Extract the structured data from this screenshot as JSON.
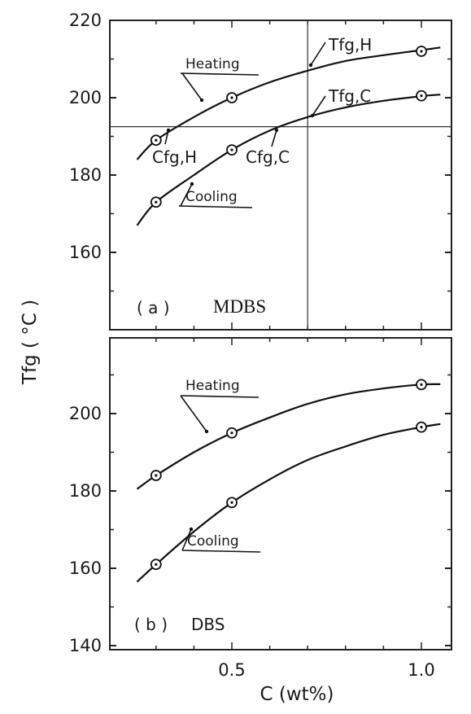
{
  "chart_data": [
    {
      "type": "line",
      "panel_label": "( a )",
      "panel_name": "MDBS",
      "ylim": [
        140,
        220
      ],
      "yticks": [
        160,
        180,
        200,
        220
      ],
      "xlim": [
        0.25,
        1.05
      ],
      "xticks": [
        0.5,
        1.0
      ],
      "series": [
        {
          "name": "Heating",
          "x": [
            0.3,
            0.5,
            1.0
          ],
          "values": [
            189,
            200,
            212
          ],
          "curve": {
            "x": [
              0.25,
              0.3,
              0.4,
              0.5,
              0.6,
              0.7,
              0.8,
              0.9,
              1.0,
              1.05
            ],
            "y": [
              184,
              189,
              195,
              200,
              204,
              207,
              209.5,
              211,
              212.3,
              213
            ]
          }
        },
        {
          "name": "Cooling",
          "x": [
            0.3,
            0.5,
            1.0
          ],
          "values": [
            173,
            186.5,
            200.5
          ],
          "curve": {
            "x": [
              0.25,
              0.3,
              0.4,
              0.5,
              0.6,
              0.7,
              0.8,
              0.9,
              1.0,
              1.05
            ],
            "y": [
              167,
              173,
              180,
              186.5,
              191.5,
              195,
              197.5,
              199.2,
              200.4,
              200.8
            ]
          }
        }
      ],
      "reference_lines": {
        "horizontal_y": 192.5,
        "vertical_x": 0.7
      },
      "annotations": {
        "heating": "Heating",
        "cooling": "Cooling",
        "cfg_h": "Cfg,H",
        "cfg_c": "Cfg,C",
        "tfg_h": "Tfg,H",
        "tfg_c": "Tfg,C"
      }
    },
    {
      "type": "line",
      "panel_label": "( b )",
      "panel_name": "DBS",
      "ylim": [
        140,
        220
      ],
      "yticks": [
        140,
        160,
        180,
        200
      ],
      "xlim": [
        0.25,
        1.05
      ],
      "xticks": [
        0.5,
        1.0
      ],
      "series": [
        {
          "name": "Heating",
          "x": [
            0.3,
            0.5,
            1.0
          ],
          "values": [
            184,
            195,
            207.5
          ],
          "curve": {
            "x": [
              0.25,
              0.3,
              0.4,
              0.5,
              0.6,
              0.7,
              0.8,
              0.9,
              1.0,
              1.05
            ],
            "y": [
              180.5,
              184,
              190,
              195,
              199,
              202.5,
              205,
              206.5,
              207.5,
              207.6
            ]
          }
        },
        {
          "name": "Cooling",
          "x": [
            0.3,
            0.5,
            1.0
          ],
          "values": [
            161,
            177,
            196.5
          ],
          "curve": {
            "x": [
              0.25,
              0.3,
              0.4,
              0.5,
              0.6,
              0.7,
              0.8,
              0.9,
              1.0,
              1.05
            ],
            "y": [
              156.5,
              161,
              169.5,
              177,
              183,
              188,
              191.5,
              194.5,
              196.5,
              197.3
            ]
          }
        }
      ],
      "annotations": {
        "heating": "Heating",
        "cooling": "Cooling"
      }
    }
  ],
  "axes": {
    "ylabel": "Tfg ( °C )",
    "xlabel": "C (wt%)"
  }
}
